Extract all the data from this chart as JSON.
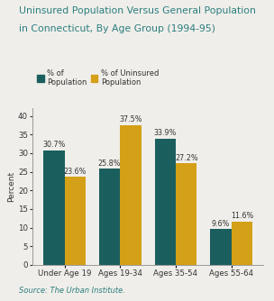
{
  "title_line1": "Uninsured Population Versus General Population",
  "title_line2": "in Connecticut, By Age Group (1994-95)",
  "categories": [
    "Under Age 19",
    "Ages 19-34",
    "Ages 35-54",
    "Ages 55-64"
  ],
  "series1_label": "% of\nPopulation",
  "series2_label": "% of Uninsured\nPopulation",
  "series1_values": [
    30.7,
    25.8,
    33.9,
    9.6
  ],
  "series2_values": [
    23.6,
    37.5,
    27.2,
    11.6
  ],
  "series1_color": "#1a5f5e",
  "series2_color": "#d4a017",
  "ylabel": "Percent",
  "ylim": [
    0,
    42
  ],
  "yticks": [
    0,
    5,
    10,
    15,
    20,
    25,
    30,
    35,
    40
  ],
  "source": "Source: The Urban Institute.",
  "bar_width": 0.38,
  "title_color": "#2a7f7f",
  "background_color": "#f0eeea",
  "value_fontsize": 5.8,
  "tick_fontsize": 6.2,
  "ylabel_fontsize": 6.5,
  "source_fontsize": 6.0,
  "legend_fontsize": 6.0,
  "title_fontsize": 7.8
}
